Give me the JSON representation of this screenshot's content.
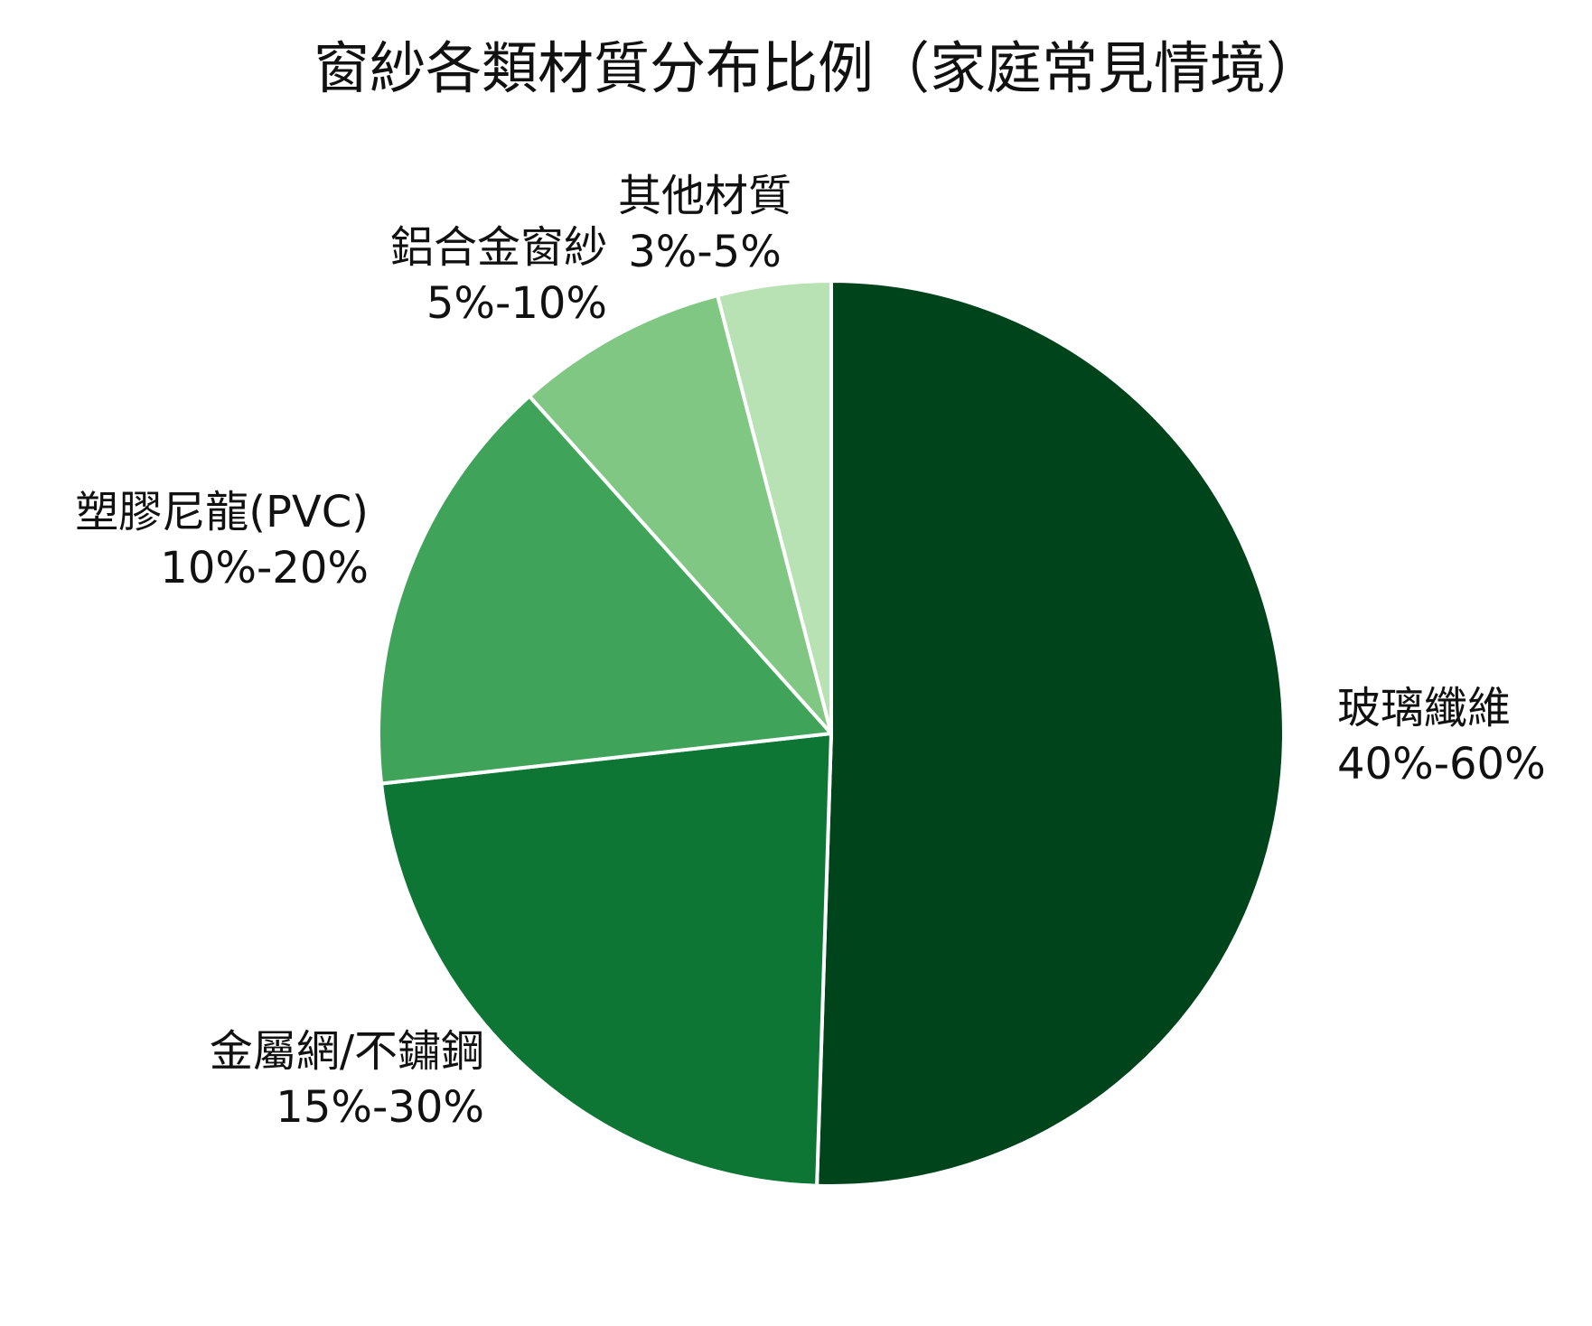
{
  "chart_data": {
    "type": "pie",
    "title": "窗紗各類材質分布比例（家庭常見情境）",
    "slices": [
      {
        "name": "玻璃纖維",
        "range_label": "40%-60%",
        "value": 50,
        "color": "#00441b"
      },
      {
        "name": "金屬網/不鏽鋼",
        "range_label": "15%-30%",
        "value": 22.5,
        "color": "#0e7635"
      },
      {
        "name": "塑膠尼龍(PVC)",
        "range_label": "10%-20%",
        "value": 15,
        "color": "#3fa45a"
      },
      {
        "name": "鋁合金窗紗",
        "range_label": "5%-10%",
        "value": 7.5,
        "color": "#81c784"
      },
      {
        "name": "其他材質",
        "range_label": "3%-5%",
        "value": 4,
        "color": "#b8e2b3"
      }
    ],
    "start": "12 o'clock",
    "direction": "clockwise",
    "legend": "none"
  }
}
